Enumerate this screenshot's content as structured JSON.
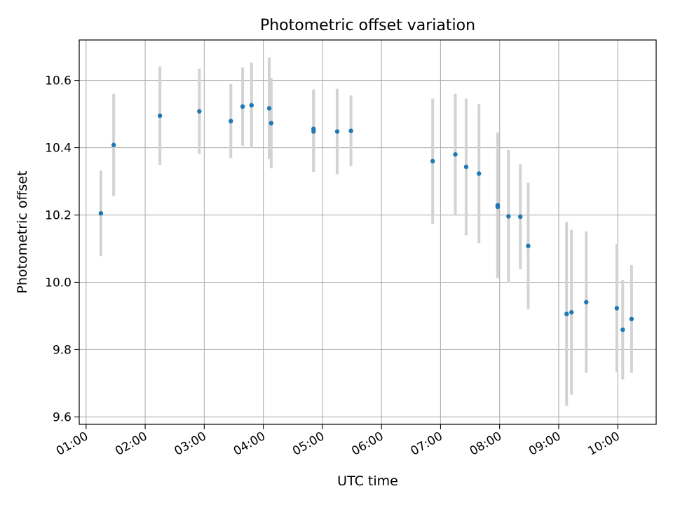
{
  "chart_data": {
    "type": "scatter",
    "title": "Photometric offset variation",
    "xlabel": "UTC time",
    "ylabel": "Photometric offset",
    "x_unit": "UTC time (HH:MM)",
    "xlim": [
      "00:53",
      "10:39"
    ],
    "ylim": [
      9.578,
      10.72
    ],
    "x_ticks": [
      "01:00",
      "02:00",
      "03:00",
      "04:00",
      "05:00",
      "06:00",
      "07:00",
      "08:00",
      "09:00",
      "10:00"
    ],
    "y_ticks": [
      "9.6",
      "9.8",
      "10.0",
      "10.2",
      "10.4",
      "10.6"
    ],
    "grid": true,
    "legend": "none",
    "colors": {
      "points": "#1f77b4",
      "errorbars": "#d3d3d3",
      "grid": "#b0b0b0"
    },
    "points": [
      {
        "x": "01:15",
        "y": 10.205,
        "err": 0.127
      },
      {
        "x": "01:28",
        "y": 10.408,
        "err": 0.152
      },
      {
        "x": "02:15",
        "y": 10.495,
        "err": 0.146
      },
      {
        "x": "02:55",
        "y": 10.508,
        "err": 0.127
      },
      {
        "x": "03:27",
        "y": 10.479,
        "err": 0.11
      },
      {
        "x": "03:39",
        "y": 10.522,
        "err": 0.116
      },
      {
        "x": "03:48",
        "y": 10.526,
        "err": 0.127
      },
      {
        "x": "04:06",
        "y": 10.517,
        "err": 0.151
      },
      {
        "x": "04:08",
        "y": 10.473,
        "err": 0.134
      },
      {
        "x": "04:51",
        "y": 10.448,
        "err": 0.12
      },
      {
        "x": "04:51",
        "y": 10.456,
        "err": 0.117
      },
      {
        "x": "05:15",
        "y": 10.448,
        "err": 0.127
      },
      {
        "x": "05:29",
        "y": 10.45,
        "err": 0.105
      },
      {
        "x": "06:52",
        "y": 10.36,
        "err": 0.186
      },
      {
        "x": "07:15",
        "y": 10.38,
        "err": 0.18
      },
      {
        "x": "07:26",
        "y": 10.343,
        "err": 0.203
      },
      {
        "x": "07:39",
        "y": 10.323,
        "err": 0.207
      },
      {
        "x": "07:58",
        "y": 10.229,
        "err": 0.217
      },
      {
        "x": "07:58",
        "y": 10.224,
        "err": 0.208
      },
      {
        "x": "08:09",
        "y": 10.196,
        "err": 0.197
      },
      {
        "x": "08:21",
        "y": 10.195,
        "err": 0.156
      },
      {
        "x": "08:29",
        "y": 10.108,
        "err": 0.188
      },
      {
        "x": "09:08",
        "y": 9.906,
        "err": 0.273
      },
      {
        "x": "09:13",
        "y": 9.911,
        "err": 0.245
      },
      {
        "x": "09:28",
        "y": 9.941,
        "err": 0.21
      },
      {
        "x": "09:59",
        "y": 9.923,
        "err": 0.19
      },
      {
        "x": "10:05",
        "y": 9.859,
        "err": 0.148
      },
      {
        "x": "10:14",
        "y": 9.891,
        "err": 0.16
      }
    ]
  }
}
